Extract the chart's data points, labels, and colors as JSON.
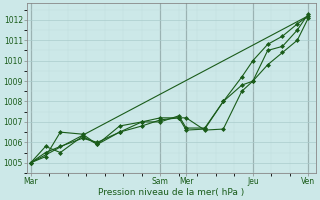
{
  "background_color": "#cce8e8",
  "grid_color_major": "#aacccc",
  "grid_color_minor": "#bedddd",
  "line_color": "#1a5c1a",
  "marker_color": "#1a5c1a",
  "ylim": [
    1004.5,
    1012.8
  ],
  "yticks": [
    1005,
    1006,
    1007,
    1008,
    1009,
    1010,
    1011,
    1012
  ],
  "xlabel": "Pression niveau de la mer( hPa )",
  "xlabel_color": "#1a5c1a",
  "xtick_labels": [
    "Mar",
    "Sam",
    "Mer",
    "Jeu",
    "Ven"
  ],
  "xtick_positions": [
    0,
    35,
    42,
    60,
    75
  ],
  "xlim": [
    -1,
    77
  ],
  "series1_x": [
    0,
    4,
    8,
    14,
    18,
    24,
    30,
    35,
    40,
    42,
    47,
    52,
    57,
    60,
    64,
    68,
    72,
    75
  ],
  "series1_y": [
    1005.0,
    1005.5,
    1005.8,
    1006.2,
    1006.0,
    1006.5,
    1006.8,
    1007.1,
    1007.2,
    1007.2,
    1006.6,
    1006.65,
    1008.5,
    1009.0,
    1010.5,
    1010.7,
    1011.5,
    1012.3
  ],
  "series2_x": [
    0,
    4,
    8,
    14,
    18,
    24,
    30,
    35,
    40,
    42,
    47,
    52,
    57,
    60,
    64,
    68,
    72,
    75
  ],
  "series2_y": [
    1005.0,
    1005.8,
    1005.5,
    1006.3,
    1005.9,
    1006.8,
    1007.0,
    1007.2,
    1007.2,
    1006.6,
    1006.65,
    1008.0,
    1009.2,
    1010.0,
    1010.8,
    1011.2,
    1011.8,
    1012.2
  ],
  "series3_x": [
    0,
    75
  ],
  "series3_y": [
    1005.0,
    1012.2
  ],
  "series4_x": [
    0,
    4,
    8,
    14,
    18,
    24,
    30,
    35,
    40,
    42,
    47,
    52,
    57,
    60,
    64,
    68,
    72,
    75
  ],
  "series4_y": [
    1005.0,
    1005.3,
    1006.5,
    1006.4,
    1005.9,
    1006.5,
    1007.0,
    1007.0,
    1007.3,
    1006.7,
    1006.7,
    1008.0,
    1008.8,
    1009.0,
    1009.8,
    1010.4,
    1011.0,
    1012.1
  ]
}
